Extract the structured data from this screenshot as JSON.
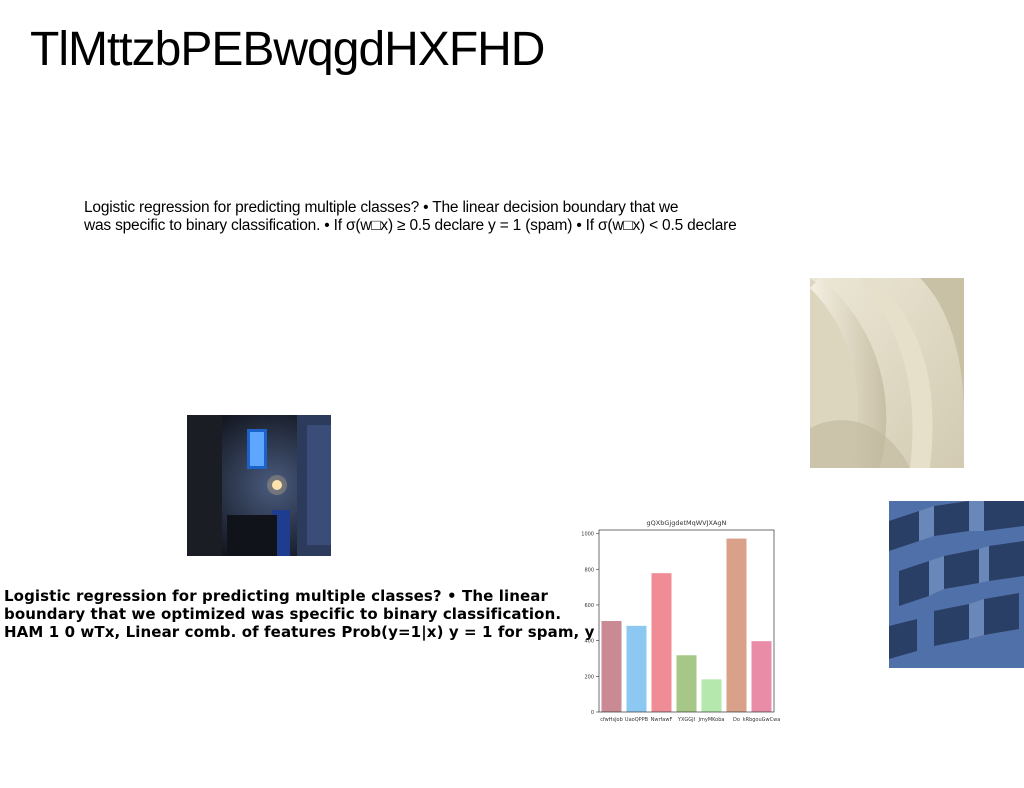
{
  "slide": {
    "title": "TlMttzbPEBwqgdHXFHD",
    "paragraph1": [
      "Logistic regression for predicting multiple classes? • The linear decision boundary that we",
      "was specific to binary classification. • If σ(w□x) ≥ 0.5 declare y = 1 (spam) • If σ(w□x) < 0.5 declare"
    ],
    "paragraph2": [
      "Logistic regression for predicting multiple classes? • The linear",
      "boundary that we optimized was specific to binary classification.",
      "HAM 1 0 wTx, Linear comb. of features Prob(y=1|x) y = 1 for spam, y"
    ]
  },
  "images": {
    "alley": "night-alley-photo",
    "shell": "abstract-cream-shell-render",
    "building": "blue-tiled-building-facade-photo"
  },
  "chart_data": {
    "type": "bar",
    "title": "gQXbGjgdetMqWVJXAgN",
    "categories": [
      "cfwHsJob",
      "UaoQPPB",
      "NwrfawF",
      "YXGGJI",
      "JmyMKoba",
      "Do",
      "kRbgouGwCwa"
    ],
    "values": [
      510,
      483,
      778,
      318,
      183,
      972,
      397
    ],
    "colors": [
      "#c98a94",
      "#8cc8f2",
      "#ef8c96",
      "#a6c787",
      "#b5e8ad",
      "#d9a08a",
      "#e98ca8"
    ],
    "ylim": [
      0,
      1020
    ],
    "yticks": [
      0,
      200,
      400,
      600,
      800,
      1000
    ],
    "xlabel": "",
    "ylabel": "",
    "grid": false
  }
}
